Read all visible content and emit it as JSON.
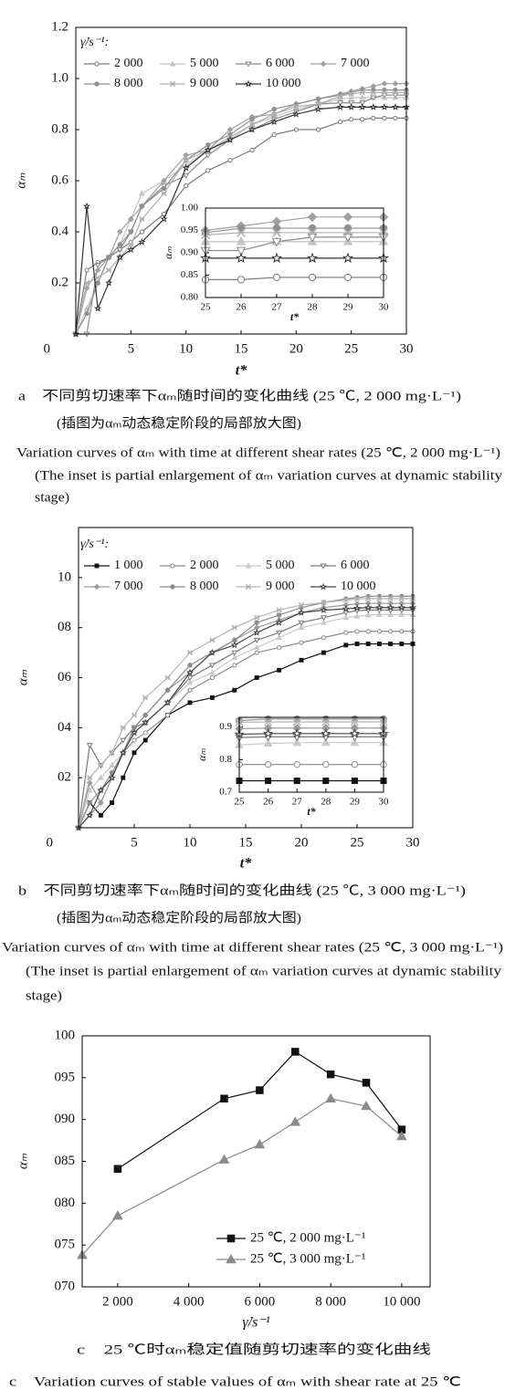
{
  "chart_data": [
    {
      "type": "line",
      "xlabel": "t*",
      "ylabel": "αₘ",
      "legend_title": "γ̇/s⁻¹:",
      "x": [
        0,
        1,
        2,
        3,
        4,
        5,
        6,
        8,
        10,
        12,
        14,
        16,
        18,
        20,
        22,
        24,
        25,
        26,
        27,
        28,
        29,
        30
      ],
      "xlim": [
        0,
        30
      ],
      "xticks": [
        5,
        10,
        15,
        20,
        25,
        30
      ],
      "ylim": [
        0,
        1.2
      ],
      "yticks": [
        0,
        0.2,
        0.4,
        0.6,
        0.8,
        {
          "value": 1.0,
          "label": "1.0"
        },
        1.2
      ],
      "series": [
        {
          "name": "2 000",
          "color": "#7a7a7a",
          "marker": "circle-open",
          "values": [
            0,
            0.25,
            0.28,
            0.3,
            0.33,
            0.36,
            0.4,
            0.47,
            0.58,
            0.64,
            0.68,
            0.72,
            0.78,
            0.8,
            0.8,
            0.83,
            0.84,
            0.84,
            0.845,
            0.845,
            0.845,
            0.845
          ]
        },
        {
          "name": "5 000",
          "color": "#c4c4c4",
          "marker": "triangle",
          "values": [
            0,
            0.1,
            0.2,
            0.3,
            0.35,
            0.45,
            0.55,
            0.6,
            0.66,
            0.72,
            0.76,
            0.82,
            0.85,
            0.88,
            0.9,
            0.92,
            0.925,
            0.925,
            0.925,
            0.925,
            0.925,
            0.925
          ]
        },
        {
          "name": "6 000",
          "color": "#8a8a8a",
          "marker": "triangle-down",
          "values": [
            0,
            0,
            0.27,
            0.3,
            0.33,
            0.4,
            0.5,
            0.58,
            0.62,
            0.7,
            0.76,
            0.8,
            0.84,
            0.87,
            0.9,
            0.905,
            0.905,
            0.905,
            0.925,
            0.935,
            0.935,
            0.935
          ]
        },
        {
          "name": "7 000",
          "color": "#a0a0a0",
          "marker": "diamond",
          "values": [
            0,
            0.18,
            0.25,
            0.3,
            0.4,
            0.45,
            0.5,
            0.6,
            0.7,
            0.72,
            0.8,
            0.85,
            0.86,
            0.9,
            0.92,
            0.94,
            0.95,
            0.96,
            0.97,
            0.98,
            0.98,
            0.98
          ]
        },
        {
          "name": "8 000",
          "color": "#909090",
          "marker": "circle",
          "values": [
            0,
            0.08,
            0.2,
            0.3,
            0.35,
            0.4,
            0.5,
            0.57,
            0.68,
            0.74,
            0.78,
            0.84,
            0.88,
            0.9,
            0.92,
            0.935,
            0.945,
            0.955,
            0.955,
            0.955,
            0.955,
            0.955
          ]
        },
        {
          "name": "9 000",
          "color": "#b0b0b0",
          "marker": "x",
          "values": [
            0,
            0.2,
            0.22,
            0.25,
            0.3,
            0.35,
            0.45,
            0.55,
            0.68,
            0.72,
            0.77,
            0.82,
            0.86,
            0.89,
            0.9,
            0.93,
            0.94,
            0.945,
            0.945,
            0.945,
            0.945,
            0.945
          ]
        },
        {
          "name": "10 000",
          "color": "#333333",
          "marker": "star",
          "values": [
            0,
            0.5,
            0.1,
            0.2,
            0.3,
            0.33,
            0.36,
            0.45,
            0.65,
            0.72,
            0.76,
            0.8,
            0.83,
            0.86,
            0.88,
            0.888,
            0.888,
            0.888,
            0.888,
            0.888,
            0.888,
            0.888
          ]
        }
      ],
      "inset": {
        "xlabel": "t*",
        "ylabel": "αₘ",
        "xlim": [
          25,
          30
        ],
        "xticks": [
          25,
          26,
          27,
          28,
          29,
          30
        ],
        "ylim": [
          0.8,
          1.0
        ],
        "yticks": [
          {
            "value": 0.8,
            "label": "0.80"
          },
          0.85,
          {
            "value": 0.9,
            "label": "0.90"
          },
          0.95,
          {
            "value": 1.0,
            "label": "1.00"
          }
        ]
      },
      "captions": [
        "a　不同剪切速率下αₘ随时间的变化曲线 (25 ℃, 2 000 mg·L⁻¹)",
        "(插图为αₘ动态稳定阶段的局部放大图)",
        "Variation curves of αₘ with time at different shear rates (25 ℃, 2 000 mg·L⁻¹)",
        "(The inset is partial enlargement of αₘ variation curves at dynamic stability",
        "stage)"
      ]
    },
    {
      "type": "line",
      "xlabel": "t*",
      "ylabel": "αₘ",
      "legend_title": "γ̇/s⁻¹:",
      "x": [
        0,
        1,
        2,
        3,
        4,
        5,
        6,
        8,
        10,
        12,
        14,
        16,
        18,
        20,
        22,
        24,
        25,
        26,
        27,
        28,
        29,
        30
      ],
      "xlim": [
        0,
        30
      ],
      "xticks": [
        5,
        10,
        15,
        20,
        25,
        30
      ],
      "ylim": [
        0,
        1.2
      ],
      "yticks": [
        0,
        {
          "value": 0.2,
          "label": "02"
        },
        {
          "value": 0.4,
          "label": "04"
        },
        {
          "value": 0.6,
          "label": "06"
        },
        {
          "value": 0.8,
          "label": "08"
        },
        {
          "value": 1.0,
          "label": "10"
        }
      ],
      "series": [
        {
          "name": "1 000",
          "color": "#111111",
          "marker": "square",
          "values": [
            0,
            0.1,
            0.05,
            0.1,
            0.2,
            0.3,
            0.35,
            0.45,
            0.5,
            0.52,
            0.55,
            0.6,
            0.63,
            0.67,
            0.7,
            0.73,
            0.735,
            0.735,
            0.735,
            0.735,
            0.735,
            0.735
          ]
        },
        {
          "name": "2 000",
          "color": "#8a8a8a",
          "marker": "circle-open",
          "values": [
            0,
            0.05,
            0.1,
            0.2,
            0.3,
            0.35,
            0.38,
            0.45,
            0.55,
            0.6,
            0.65,
            0.7,
            0.72,
            0.74,
            0.76,
            0.78,
            0.785,
            0.785,
            0.785,
            0.785,
            0.785,
            0.785
          ]
        },
        {
          "name": "5 000",
          "color": "#c8c8c8",
          "marker": "triangle",
          "values": [
            0,
            0.15,
            0.2,
            0.25,
            0.3,
            0.38,
            0.42,
            0.5,
            0.58,
            0.62,
            0.68,
            0.72,
            0.76,
            0.8,
            0.82,
            0.84,
            0.845,
            0.85,
            0.852,
            0.852,
            0.852,
            0.852
          ]
        },
        {
          "name": "6 000",
          "color": "#7a7a7a",
          "marker": "triangle-down",
          "values": [
            0,
            0.33,
            0.25,
            0.3,
            0.35,
            0.4,
            0.42,
            0.5,
            0.6,
            0.65,
            0.7,
            0.75,
            0.78,
            0.82,
            0.84,
            0.86,
            0.868,
            0.87,
            0.87,
            0.87,
            0.87,
            0.87
          ]
        },
        {
          "name": "7 000",
          "color": "#9a9a9a",
          "marker": "diamond",
          "values": [
            0,
            0.18,
            0.1,
            0.2,
            0.3,
            0.4,
            0.45,
            0.55,
            0.62,
            0.7,
            0.75,
            0.8,
            0.83,
            0.86,
            0.88,
            0.89,
            0.895,
            0.897,
            0.897,
            0.897,
            0.897,
            0.897
          ]
        },
        {
          "name": "8 000",
          "color": "#8c8c8c",
          "marker": "circle",
          "values": [
            0,
            0.1,
            0.15,
            0.22,
            0.3,
            0.4,
            0.45,
            0.55,
            0.65,
            0.7,
            0.75,
            0.82,
            0.85,
            0.88,
            0.9,
            0.915,
            0.92,
            0.925,
            0.925,
            0.925,
            0.925,
            0.925
          ]
        },
        {
          "name": "9 000",
          "color": "#b4b4b4",
          "marker": "x",
          "values": [
            0,
            0.2,
            0.25,
            0.3,
            0.4,
            0.45,
            0.52,
            0.6,
            0.7,
            0.75,
            0.8,
            0.84,
            0.87,
            0.89,
            0.9,
            0.91,
            0.915,
            0.916,
            0.916,
            0.916,
            0.916,
            0.916
          ]
        },
        {
          "name": "10 000",
          "color": "#444444",
          "marker": "star",
          "values": [
            0,
            0.05,
            0.15,
            0.2,
            0.3,
            0.38,
            0.42,
            0.5,
            0.62,
            0.7,
            0.73,
            0.78,
            0.82,
            0.86,
            0.87,
            0.875,
            0.878,
            0.88,
            0.88,
            0.88,
            0.88,
            0.88
          ]
        }
      ],
      "inset": {
        "xlabel": "t*",
        "ylabel": "αₘ",
        "xlim": [
          25,
          30
        ],
        "xticks": [
          25,
          26,
          27,
          28,
          29,
          30
        ],
        "ylim": [
          0.7,
          0.93
        ],
        "yticks": [
          0.7,
          0.8,
          0.9
        ]
      },
      "captions": [
        "b　不同剪切速率下αₘ随时间的变化曲线 (25 ℃, 3 000 mg·L⁻¹)",
        "(插图为αₘ动态稳定阶段的局部放大图)",
        "Variation curves of αₘ with time at different shear rates (25 ℃, 3 000 mg·L⁻¹)",
        "(The inset is partial enlargement of αₘ variation curves at dynamic stability",
        "stage)"
      ]
    },
    {
      "type": "line",
      "xlabel": "γ̇/s⁻¹",
      "ylabel": "αₘ",
      "xlim": [
        1000,
        10800
      ],
      "xticks": [
        {
          "value": 2000,
          "label": "2 000"
        },
        {
          "value": 4000,
          "label": "4 000"
        },
        {
          "value": 6000,
          "label": "6 000"
        },
        {
          "value": 8000,
          "label": "8 000"
        },
        {
          "value": 10000,
          "label": "10 000"
        }
      ],
      "ylim": [
        0.7,
        1.0
      ],
      "yticks": [
        {
          "value": 0.7,
          "label": "070"
        },
        {
          "value": 0.75,
          "label": "075"
        },
        {
          "value": 0.8,
          "label": "080"
        },
        {
          "value": 0.85,
          "label": "085"
        },
        {
          "value": 0.9,
          "label": "090"
        },
        {
          "value": 0.95,
          "label": "095"
        },
        {
          "value": 1.0,
          "label": "100"
        }
      ],
      "series": [
        {
          "name": "25 ℃, 2 000 mg·L⁻¹",
          "color": "#111111",
          "marker": "square",
          "x": [
            2000,
            5000,
            6000,
            7000,
            8000,
            9000,
            10000
          ],
          "values": [
            0.841,
            0.925,
            0.935,
            0.981,
            0.954,
            0.944,
            0.888
          ]
        },
        {
          "name": "25 ℃, 3 000 mg·L⁻¹",
          "color": "#8a8a8a",
          "marker": "triangle",
          "x": [
            1000,
            2000,
            5000,
            6000,
            7000,
            8000,
            9000,
            10000
          ],
          "values": [
            0.738,
            0.785,
            0.852,
            0.87,
            0.897,
            0.925,
            0.916,
            0.88
          ]
        }
      ],
      "captions": [
        "c　25 ℃时αₘ稳定值随剪切速率的变化曲线",
        "c　Variation curves of stable values of αₘ with shear rate at 25 ℃"
      ]
    }
  ]
}
